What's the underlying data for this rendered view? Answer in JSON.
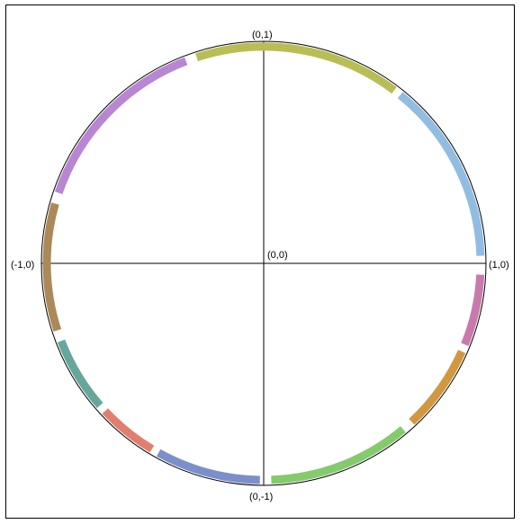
{
  "diagram": {
    "labels": {
      "top": "(0,1)",
      "right": "(1,0)",
      "bottom": "(0,-1)",
      "left": "(-1,0)",
      "center": "(0,0)"
    },
    "segments": [
      {
        "name": "olive",
        "color": "#b9bd55"
      },
      {
        "name": "sky",
        "color": "#92bde3"
      },
      {
        "name": "pink",
        "color": "#c97aac"
      },
      {
        "name": "orange",
        "color": "#d1983f"
      },
      {
        "name": "green",
        "color": "#84cb6d"
      },
      {
        "name": "blue",
        "color": "#7b8fcb"
      },
      {
        "name": "red",
        "color": "#e17f6e"
      },
      {
        "name": "teal",
        "color": "#66a79c"
      },
      {
        "name": "brown",
        "color": "#ab8958"
      },
      {
        "name": "purple",
        "color": "#b886d3"
      }
    ]
  }
}
